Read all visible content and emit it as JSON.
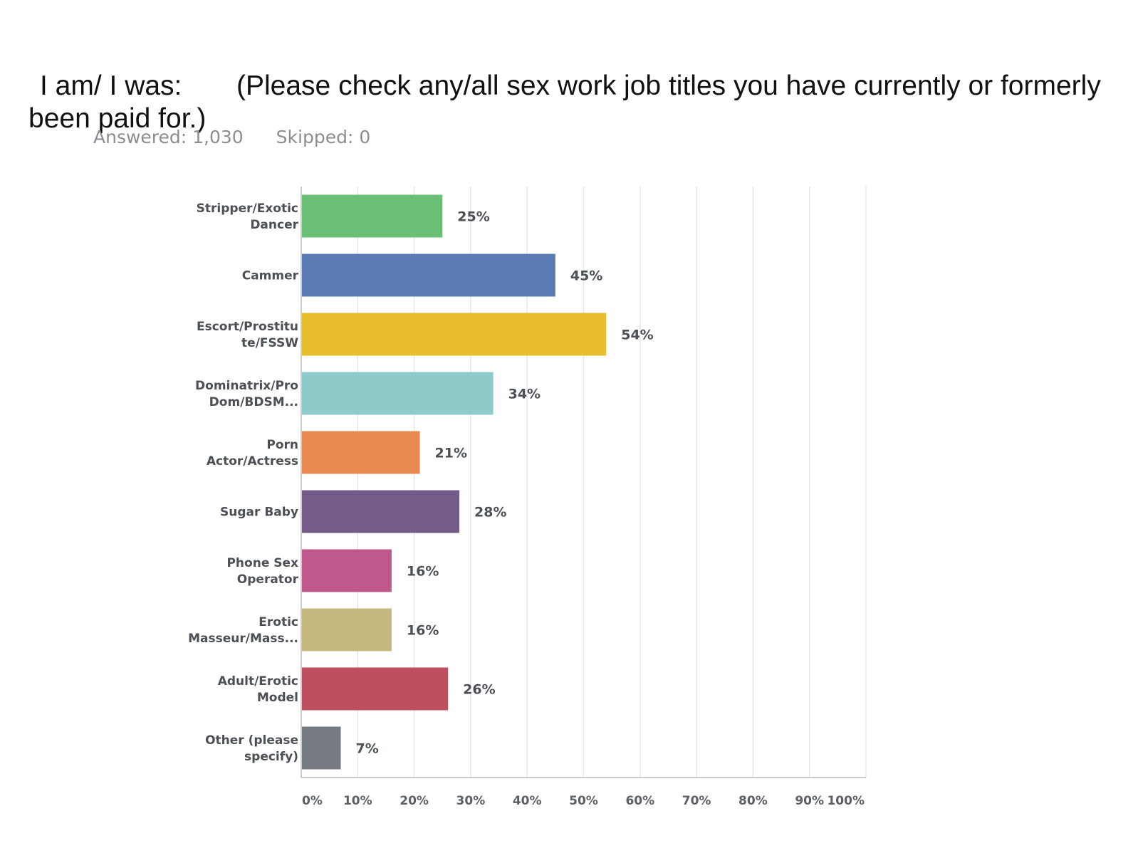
{
  "question": {
    "prefix": "I am/ I was:",
    "text": "(Please check any/all sex work job titles you have currently or formerly been paid for.)"
  },
  "stats": {
    "answered": "Answered: 1,030",
    "skipped": "Skipped: 0"
  },
  "chart_data": {
    "type": "bar",
    "orientation": "horizontal",
    "categories": [
      [
        "Stripper/Exotic",
        "Dancer"
      ],
      [
        "Cammer"
      ],
      [
        "Escort/Prostitu",
        "te/FSSW"
      ],
      [
        "Dominatrix/Pro",
        "Dom/BDSM..."
      ],
      [
        "Porn",
        "Actor/Actress"
      ],
      [
        "Sugar Baby"
      ],
      [
        "Phone Sex",
        "Operator"
      ],
      [
        "Erotic",
        "Masseur/Mass..."
      ],
      [
        "Adult/Erotic",
        "Model"
      ],
      [
        "Other (please",
        "specify)"
      ]
    ],
    "values": [
      25,
      45,
      54,
      34,
      21,
      28,
      16,
      16,
      26,
      7
    ],
    "value_labels": [
      "25%",
      "45%",
      "54%",
      "34%",
      "21%",
      "28%",
      "16%",
      "16%",
      "26%",
      "7%"
    ],
    "colors": [
      "#6bbf76",
      "#5c7bb5",
      "#e8be2e",
      "#8ecac9",
      "#e68a52",
      "#735b8a",
      "#c0588b",
      "#c5b97f",
      "#bf4e5e",
      "#767b82"
    ],
    "xlim": [
      0,
      100
    ],
    "xticks": [
      "0%",
      "10%",
      "20%",
      "30%",
      "40%",
      "50%",
      "60%",
      "70%",
      "80%",
      "90%",
      "100%"
    ],
    "grid": true,
    "legend": false
  }
}
